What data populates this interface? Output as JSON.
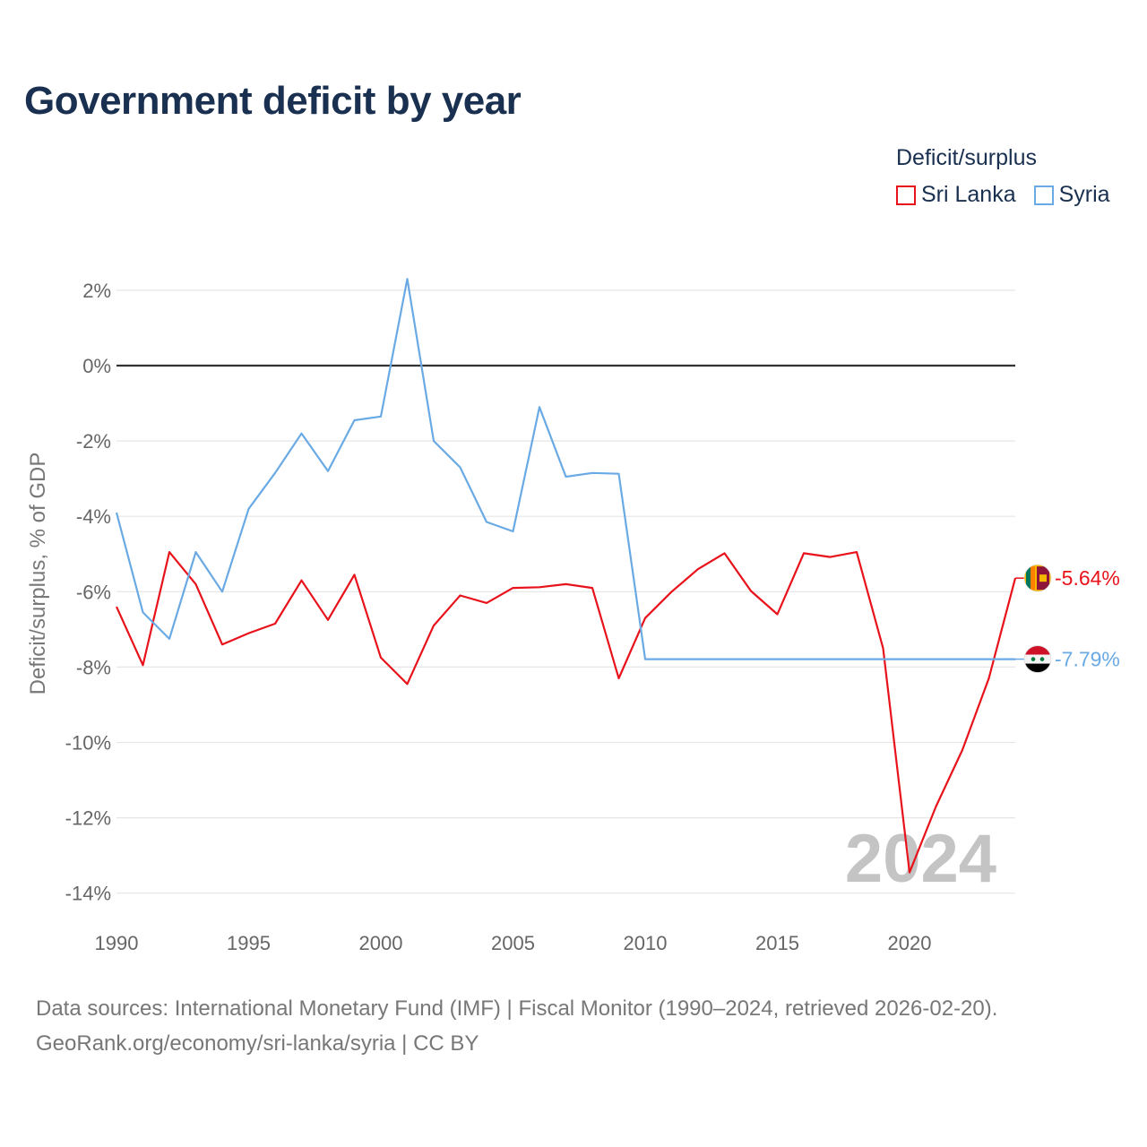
{
  "chart_data": {
    "type": "line",
    "title": "Government deficit by year",
    "ylabel": "Deficit/surplus, % of GDP",
    "xlabel": "",
    "xlim": [
      1990,
      2024
    ],
    "ylim": [
      -14.5,
      2.8
    ],
    "x_ticks": [
      1990,
      1995,
      2000,
      2005,
      2010,
      2015,
      2020
    ],
    "y_ticks": [
      2,
      0,
      -2,
      -4,
      -6,
      -8,
      -10,
      -12,
      -14
    ],
    "y_tick_suffix": "%",
    "legend_title": "Deficit/surplus",
    "legend_position": "top-right",
    "watermark_year": "2024",
    "x": [
      1990,
      1991,
      1992,
      1993,
      1994,
      1995,
      1996,
      1997,
      1998,
      1999,
      2000,
      2001,
      2002,
      2003,
      2004,
      2005,
      2006,
      2007,
      2008,
      2009,
      2010,
      2011,
      2012,
      2013,
      2014,
      2015,
      2016,
      2017,
      2018,
      2019,
      2020,
      2021,
      2022,
      2023,
      2024
    ],
    "series": [
      {
        "name": "Sri Lanka",
        "color": "#e8121b",
        "end_label": "-5.64%",
        "flag_icon": "sri-lanka-flag-icon",
        "values": [
          -6.4,
          -7.95,
          -4.95,
          -5.8,
          -7.4,
          -7.1,
          -6.85,
          -5.7,
          -6.75,
          -5.55,
          -7.75,
          -8.45,
          -6.9,
          -6.1,
          -6.3,
          -5.9,
          -5.88,
          -5.8,
          -5.9,
          -8.3,
          -6.7,
          -6.0,
          -5.4,
          -4.98,
          -5.98,
          -6.6,
          -4.98,
          -5.08,
          -4.95,
          -7.5,
          -13.45,
          -11.7,
          -10.2,
          -8.3,
          -5.64
        ]
      },
      {
        "name": "Syria",
        "color": "#6aaae4",
        "end_label": "-7.79%",
        "flag_icon": "syria-flag-icon",
        "values": [
          -3.9,
          -6.55,
          -7.25,
          -4.95,
          -6.0,
          -3.8,
          -2.85,
          -1.8,
          -2.8,
          -1.45,
          -1.35,
          2.3,
          -2.0,
          -2.7,
          -4.15,
          -4.4,
          -1.1,
          -2.95,
          -2.85,
          -2.87,
          -7.79,
          -7.79,
          -7.79,
          -7.79,
          -7.79,
          -7.79,
          -7.79,
          -7.79,
          -7.79,
          -7.79,
          -7.79,
          -7.79,
          -7.79,
          -7.79,
          -7.79
        ]
      }
    ]
  },
  "footer": {
    "line1": "Data sources: International Monetary Fund (IMF) | Fiscal Monitor (1990–2024, retrieved 2026-02-20).",
    "line2": "GeoRank.org/economy/sri-lanka/syria | CC BY"
  }
}
